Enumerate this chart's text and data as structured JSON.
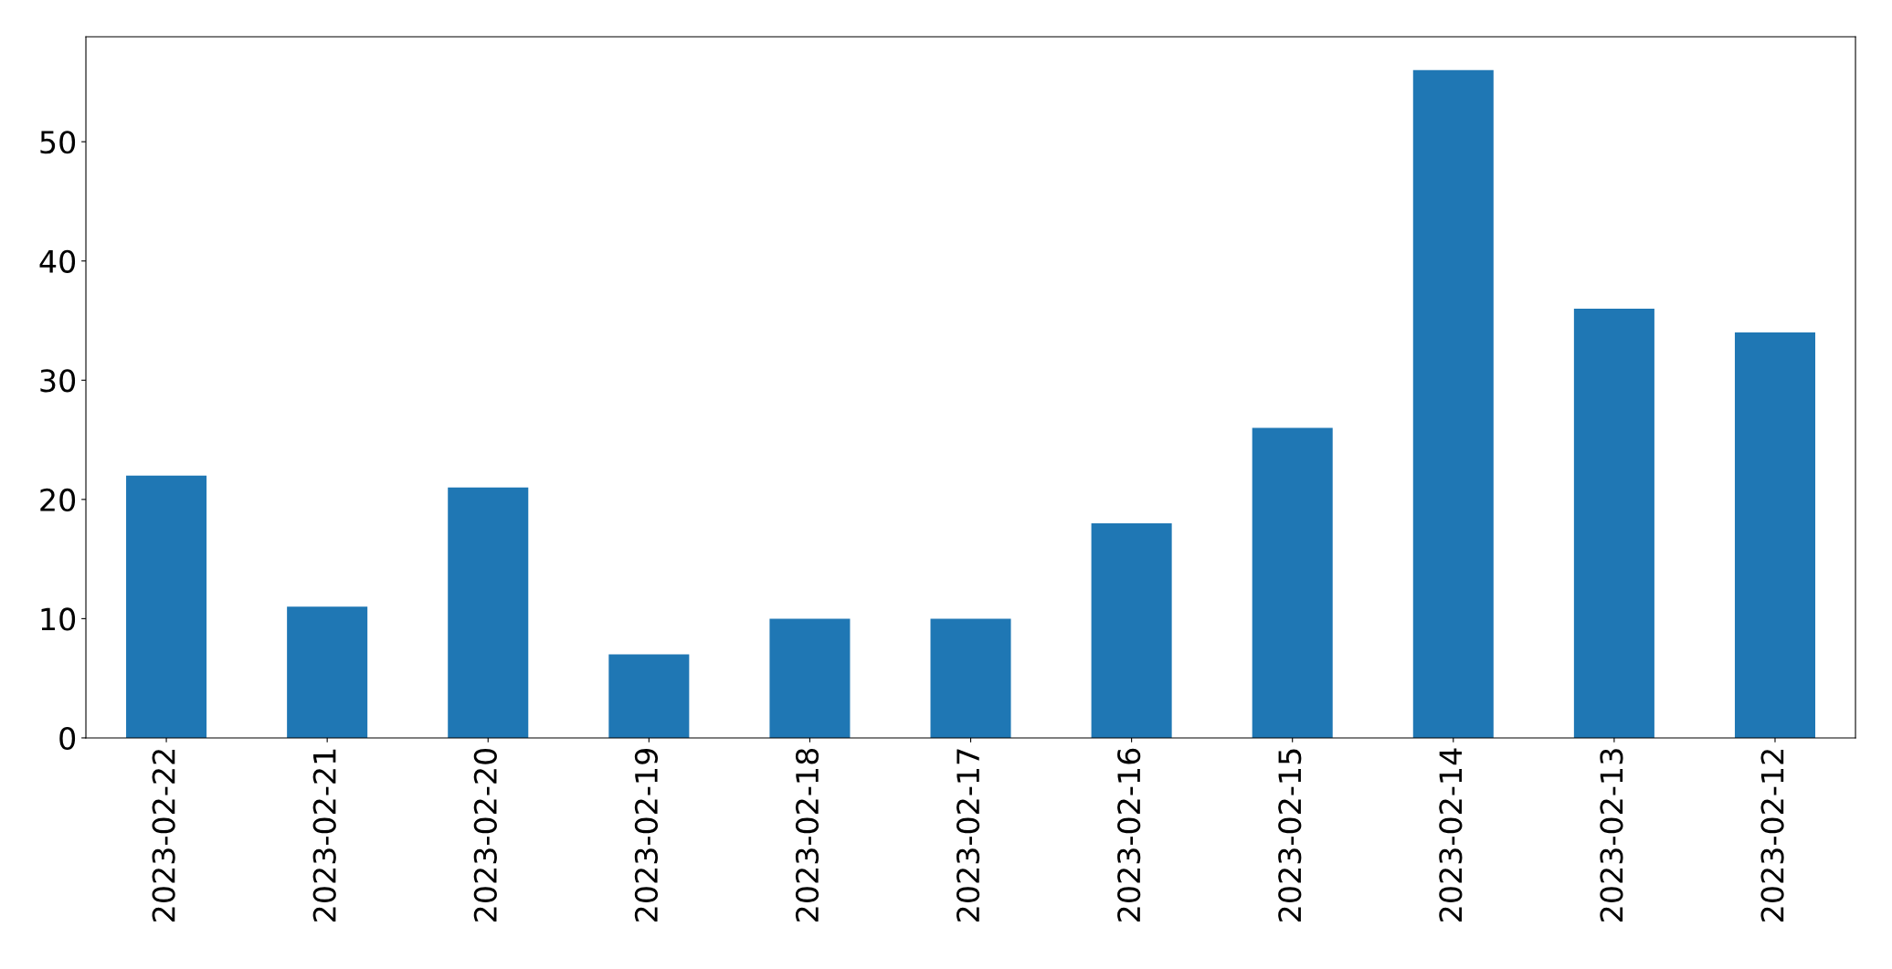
{
  "chart_data": {
    "type": "bar",
    "categories": [
      "2023-02-22",
      "2023-02-21",
      "2023-02-20",
      "2023-02-19",
      "2023-02-18",
      "2023-02-17",
      "2023-02-16",
      "2023-02-15",
      "2023-02-14",
      "2023-02-13",
      "2023-02-12"
    ],
    "values": [
      22,
      11,
      21,
      7,
      10,
      10,
      18,
      26,
      56,
      36,
      34
    ],
    "color": "#1f77b4",
    "ylim": [
      0,
      58.8
    ],
    "yticks": [
      0,
      10,
      20,
      30,
      40,
      50
    ],
    "grid": false,
    "legend": false
  }
}
